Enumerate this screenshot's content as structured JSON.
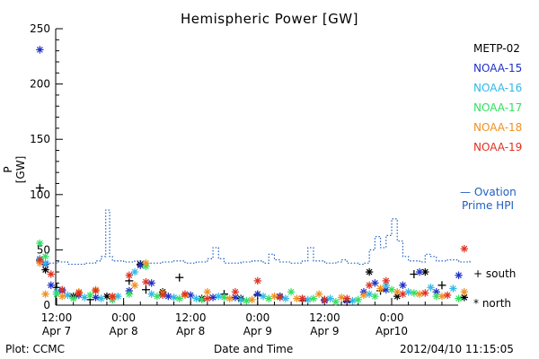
{
  "chart_data": {
    "type": "scatter",
    "title": "Hemispheric Power [GW]",
    "ylabel": "P [GW]",
    "xlabel": "Date and Time",
    "ylim": [
      0,
      250
    ],
    "yticks": [
      0,
      50,
      100,
      150,
      200,
      250
    ],
    "x_unit": "hours since 2012-04-07 00:00",
    "xlim": [
      8.3,
      226
    ],
    "xticks": [
      {
        "x": 12,
        "line1": "12:00",
        "line2": "Apr 7"
      },
      {
        "x": 24,
        "line1": "0:00",
        "line2": "Apr 8"
      },
      {
        "x": 36,
        "line1": "12:00",
        "line2": "Apr 8"
      },
      {
        "x": 48,
        "line1": "0:00",
        "line2": "Apr 9"
      },
      {
        "x": 60,
        "line1": "12:00",
        "line2": "Apr 9"
      },
      {
        "x": 72,
        "line1": "0:00",
        "line2": "Apr10"
      }
    ],
    "series": [
      {
        "name": "METP-02",
        "color": "#000000",
        "marker": "+*",
        "points": [
          [
            9,
            106
          ],
          [
            10,
            32
          ],
          [
            12,
            16
          ],
          [
            15,
            8
          ],
          [
            18,
            5
          ],
          [
            21,
            8
          ],
          [
            25,
            22
          ],
          [
            27,
            37
          ],
          [
            28,
            14
          ],
          [
            31,
            12
          ],
          [
            34,
            25
          ],
          [
            38,
            6
          ],
          [
            42,
            10
          ],
          [
            45,
            6
          ],
          [
            48,
            9
          ],
          [
            52,
            8
          ],
          [
            56,
            4
          ],
          [
            60,
            5
          ],
          [
            64,
            3
          ],
          [
            68,
            30
          ],
          [
            70,
            13
          ],
          [
            73,
            8
          ],
          [
            76,
            28
          ],
          [
            78,
            30
          ],
          [
            81,
            18
          ],
          [
            85,
            7
          ]
        ]
      },
      {
        "name": "NOAA-15",
        "color": "#2030c8",
        "marker": "*",
        "points": [
          [
            9,
            231
          ],
          [
            10,
            37
          ],
          [
            11,
            18
          ],
          [
            13,
            13
          ],
          [
            16,
            9
          ],
          [
            19,
            7
          ],
          [
            22,
            5
          ],
          [
            25,
            13
          ],
          [
            27,
            36
          ],
          [
            29,
            20
          ],
          [
            32,
            8
          ],
          [
            36,
            9
          ],
          [
            40,
            7
          ],
          [
            44,
            7
          ],
          [
            48,
            10
          ],
          [
            52,
            8
          ],
          [
            56,
            6
          ],
          [
            60,
            4
          ],
          [
            64,
            4
          ],
          [
            67,
            12
          ],
          [
            69,
            20
          ],
          [
            71,
            14
          ],
          [
            74,
            18
          ],
          [
            77,
            30
          ],
          [
            80,
            12
          ],
          [
            84,
            27
          ]
        ]
      },
      {
        "name": "NOAA-16",
        "color": "#30b8e8",
        "marker": "*",
        "points": [
          [
            9,
            42
          ],
          [
            10,
            38
          ],
          [
            12,
            12
          ],
          [
            14,
            9
          ],
          [
            17,
            7
          ],
          [
            20,
            6
          ],
          [
            23,
            8
          ],
          [
            26,
            30
          ],
          [
            29,
            10
          ],
          [
            33,
            7
          ],
          [
            37,
            6
          ],
          [
            41,
            8
          ],
          [
            45,
            5
          ],
          [
            49,
            8
          ],
          [
            53,
            6
          ],
          [
            57,
            5
          ],
          [
            61,
            6
          ],
          [
            65,
            4
          ],
          [
            68,
            10
          ],
          [
            71,
            18
          ],
          [
            75,
            12
          ],
          [
            79,
            16
          ],
          [
            83,
            15
          ]
        ]
      },
      {
        "name": "NOAA-17",
        "color": "#30e060",
        "marker": "*",
        "points": [
          [
            9,
            56
          ],
          [
            10,
            44
          ],
          [
            12,
            10
          ],
          [
            15,
            6
          ],
          [
            18,
            9
          ],
          [
            22,
            5
          ],
          [
            25,
            10
          ],
          [
            28,
            35
          ],
          [
            30,
            8
          ],
          [
            34,
            6
          ],
          [
            38,
            5
          ],
          [
            42,
            7
          ],
          [
            46,
            4
          ],
          [
            50,
            6
          ],
          [
            54,
            12
          ],
          [
            58,
            6
          ],
          [
            62,
            3
          ],
          [
            66,
            5
          ],
          [
            69,
            8
          ],
          [
            72,
            14
          ],
          [
            76,
            11
          ],
          [
            80,
            8
          ],
          [
            84,
            6
          ]
        ]
      },
      {
        "name": "NOAA-18",
        "color": "#f09020",
        "marker": "*",
        "points": [
          [
            9,
            38
          ],
          [
            10,
            10
          ],
          [
            13,
            8
          ],
          [
            16,
            12
          ],
          [
            19,
            14
          ],
          [
            22,
            7
          ],
          [
            26,
            18
          ],
          [
            28,
            38
          ],
          [
            31,
            11
          ],
          [
            35,
            9
          ],
          [
            39,
            12
          ],
          [
            43,
            6
          ],
          [
            47,
            5
          ],
          [
            51,
            8
          ],
          [
            55,
            6
          ],
          [
            59,
            10
          ],
          [
            63,
            7
          ],
          [
            67,
            9
          ],
          [
            70,
            15
          ],
          [
            73,
            12
          ],
          [
            77,
            10
          ],
          [
            81,
            8
          ],
          [
            85,
            12
          ]
        ]
      },
      {
        "name": "NOAA-19",
        "color": "#e03020",
        "marker": "*",
        "points": [
          [
            9,
            41
          ],
          [
            11,
            28
          ],
          [
            13,
            14
          ],
          [
            16,
            11
          ],
          [
            19,
            13
          ],
          [
            22,
            8
          ],
          [
            25,
            27
          ],
          [
            28,
            21
          ],
          [
            31,
            9
          ],
          [
            35,
            10
          ],
          [
            39,
            6
          ],
          [
            44,
            12
          ],
          [
            48,
            22
          ],
          [
            52,
            7
          ],
          [
            56,
            6
          ],
          [
            60,
            5
          ],
          [
            64,
            6
          ],
          [
            68,
            18
          ],
          [
            71,
            22
          ],
          [
            74,
            10
          ],
          [
            78,
            11
          ],
          [
            82,
            9
          ],
          [
            85,
            51
          ]
        ]
      },
      {
        "name": "Ovation Prime HPI",
        "color": "#1f5fc0",
        "style": "dotted-step",
        "points": [
          [
            8.3,
            40
          ],
          [
            10,
            38
          ],
          [
            12,
            39
          ],
          [
            14,
            37
          ],
          [
            17,
            38
          ],
          [
            19,
            40
          ],
          [
            20,
            44
          ],
          [
            20.8,
            86
          ],
          [
            21.5,
            44
          ],
          [
            22,
            40
          ],
          [
            24,
            39
          ],
          [
            26,
            40
          ],
          [
            28,
            38
          ],
          [
            31,
            39
          ],
          [
            33,
            40
          ],
          [
            35,
            38
          ],
          [
            37,
            39
          ],
          [
            39,
            42
          ],
          [
            40,
            52
          ],
          [
            41,
            42
          ],
          [
            42,
            38
          ],
          [
            45,
            39
          ],
          [
            47,
            40
          ],
          [
            49,
            38
          ],
          [
            50,
            46
          ],
          [
            51,
            41
          ],
          [
            52,
            39
          ],
          [
            54,
            38
          ],
          [
            56,
            40
          ],
          [
            57,
            52
          ],
          [
            58,
            40
          ],
          [
            60,
            38
          ],
          [
            62,
            39
          ],
          [
            63,
            41
          ],
          [
            64,
            38
          ],
          [
            66,
            37
          ],
          [
            67,
            38
          ],
          [
            68,
            50
          ],
          [
            69,
            62
          ],
          [
            70,
            52
          ],
          [
            71,
            63
          ],
          [
            72,
            78
          ],
          [
            73,
            58
          ],
          [
            74,
            44
          ],
          [
            75,
            40
          ],
          [
            77,
            39
          ],
          [
            78,
            46
          ],
          [
            79,
            44
          ],
          [
            80,
            40
          ],
          [
            82,
            41
          ],
          [
            84,
            39
          ],
          [
            86,
            40
          ]
        ]
      }
    ]
  },
  "legend": {
    "items": [
      {
        "label": "METP-02",
        "color": "#000000"
      },
      {
        "label": "NOAA-15",
        "color": "#2030c8"
      },
      {
        "label": "NOAA-16",
        "color": "#30b8e8"
      },
      {
        "label": "NOAA-17",
        "color": "#30e060"
      },
      {
        "label": "NOAA-18",
        "color": "#f09020"
      },
      {
        "label": "NOAA-19",
        "color": "#e03020"
      }
    ],
    "ovation_line1": "— Ovation",
    "ovation_line2": "Prime HPI",
    "south": "+ south",
    "north": "* north"
  },
  "footer": {
    "left": "Plot: CCMC",
    "center": "Date and Time",
    "right": "2012/04/10 11:15:05"
  }
}
